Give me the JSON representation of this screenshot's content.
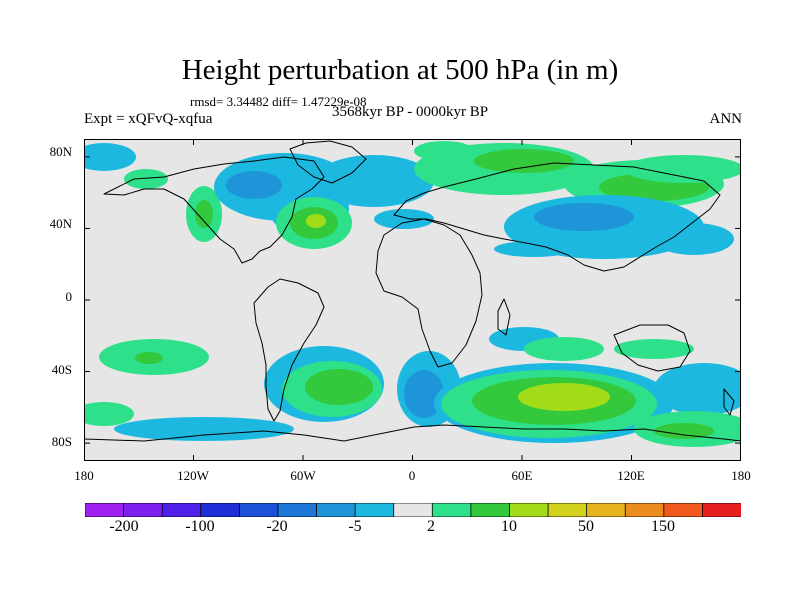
{
  "title": "Height perturbation at 500 hPa (in m)",
  "stats": "rmsd= 3.34482 diff= 1.47229e-08",
  "experiment": "Expt = xQFvQ-xqfua",
  "period": "3568kyr BP - 0000kyr BP",
  "season": "ANN",
  "lat_ticks": [
    "80N",
    "40N",
    "0",
    "40S",
    "80S"
  ],
  "lon_ticks": [
    "180",
    "120W",
    "60W",
    "0",
    "60E",
    "120E",
    "180"
  ],
  "colorbar": {
    "colors": [
      "#a020f0",
      "#7f20f0",
      "#5020e8",
      "#1e2fd8",
      "#1c50d8",
      "#1f78d8",
      "#1e95d8",
      "#1cb8e0",
      "#e6e6e6",
      "#2ee08a",
      "#34c83c",
      "#a2dc19",
      "#d2d21e",
      "#e6b41e",
      "#eb8c1e",
      "#f05a1e",
      "#e61e1e"
    ],
    "labels": [
      "-200",
      "-100",
      "-20",
      "-5",
      "2",
      "10",
      "50",
      "150"
    ]
  },
  "chart_data": {
    "type": "heatmap",
    "title": "Height perturbation at 500 hPa (in m)",
    "xlabel": "",
    "ylabel": "",
    "xlim": [
      -180,
      180
    ],
    "ylim": [
      -90,
      90
    ],
    "x_ticks": [
      "180",
      "120W",
      "60W",
      "0",
      "60E",
      "120E",
      "180"
    ],
    "y_ticks": [
      "80N",
      "40N",
      "0",
      "40S",
      "80S"
    ],
    "regions": [
      {
        "lon": -48,
        "lat": 40,
        "level": "10"
      },
      {
        "lon": -50,
        "lat": 48,
        "level": "-5"
      },
      {
        "lon": 100,
        "lat": 45,
        "level": "-5"
      },
      {
        "lon": 130,
        "lat": 55,
        "level": "2"
      },
      {
        "lon": 60,
        "lat": -60,
        "level": "10"
      },
      {
        "lon": -40,
        "lat": -55,
        "level": "10"
      },
      {
        "lon": -120,
        "lat": -30,
        "level": "2"
      },
      {
        "lon": 145,
        "lat": -80,
        "level": "2"
      }
    ]
  }
}
